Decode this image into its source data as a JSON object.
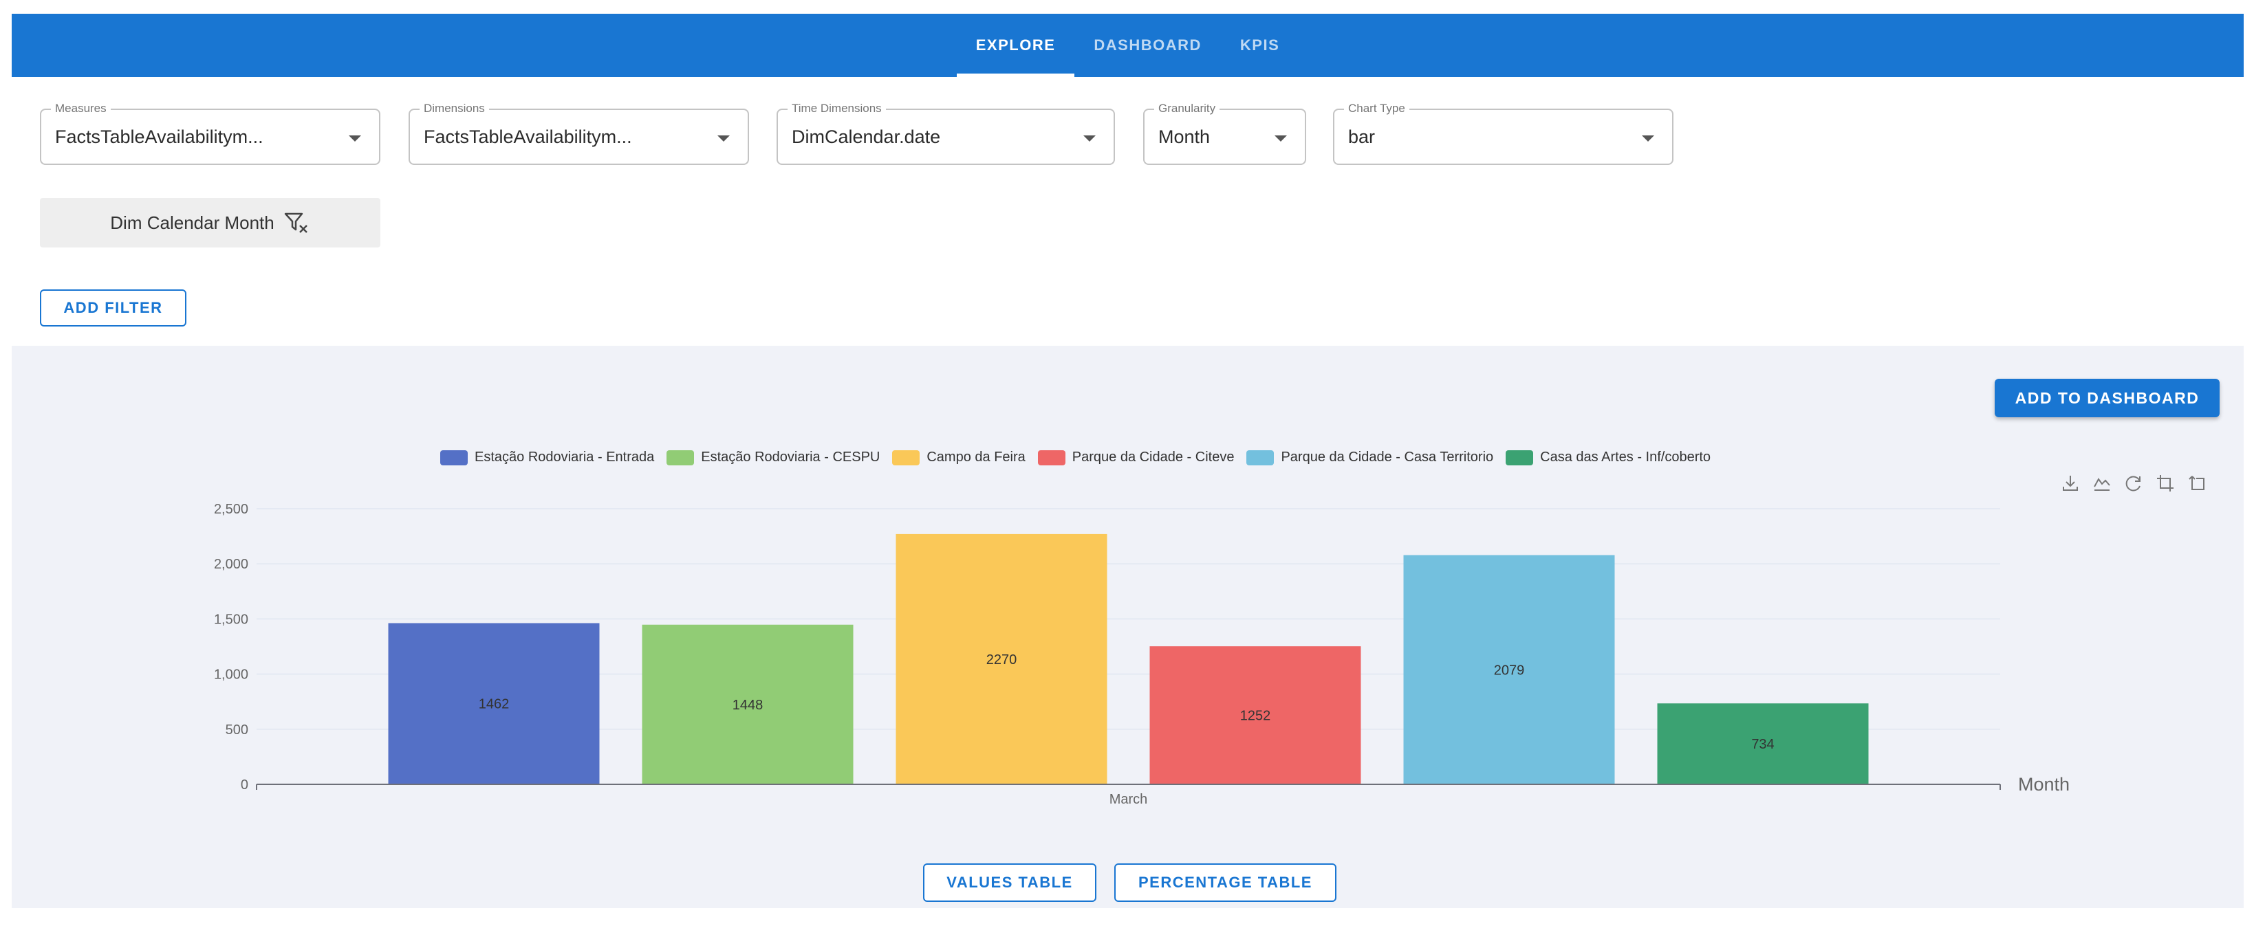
{
  "nav": {
    "tabs": [
      {
        "label": "EXPLORE",
        "active": true
      },
      {
        "label": "DASHBOARD",
        "active": false
      },
      {
        "label": "KPIS",
        "active": false
      }
    ]
  },
  "query": {
    "measures": {
      "label": "Measures",
      "value": "FactsTableAvailabilitym..."
    },
    "dimensions": {
      "label": "Dimensions",
      "value": "FactsTableAvailabilitym..."
    },
    "time_dimensions": {
      "label": "Time Dimensions",
      "value": "DimCalendar.date"
    },
    "granularity": {
      "label": "Granularity",
      "value": "Month"
    },
    "chart_type": {
      "label": "Chart Type",
      "value": "bar"
    }
  },
  "filter_chip": {
    "label": "Dim Calendar Month"
  },
  "buttons": {
    "add_filter": "ADD FILTER",
    "add_to_dashboard": "ADD TO DASHBOARD",
    "values_table": "VALUES TABLE",
    "percentage_table": "PERCENTAGE TABLE"
  },
  "toolbox": [
    "download-icon",
    "line-chart-icon",
    "refresh-icon",
    "crop-icon",
    "crop-back-icon"
  ],
  "chart_data": {
    "type": "bar",
    "categories": [
      "March"
    ],
    "series": [
      {
        "name": "Estação Rodoviaria - Entrada",
        "values": [
          1462
        ],
        "color": "#5470c6"
      },
      {
        "name": "Estação Rodoviaria - CESPU",
        "values": [
          1448
        ],
        "color": "#91cc75"
      },
      {
        "name": "Campo da Feira",
        "values": [
          2270
        ],
        "color": "#fac858"
      },
      {
        "name": "Parque da Cidade - Citeve",
        "values": [
          1252
        ],
        "color": "#ee6666"
      },
      {
        "name": "Parque da Cidade - Casa Territorio",
        "values": [
          2079
        ],
        "color": "#73c0de"
      },
      {
        "name": "Casa das Artes -  Inf/coberto",
        "values": [
          734
        ],
        "color": "#3ba272"
      }
    ],
    "xlabel": "Month",
    "ylabel": "",
    "ylim": [
      0,
      2500
    ],
    "yticks": [
      "0",
      "500",
      "1,000",
      "1,500",
      "2,000",
      "2,500"
    ],
    "grid": true,
    "legend": "top-center",
    "data_labels": true
  }
}
